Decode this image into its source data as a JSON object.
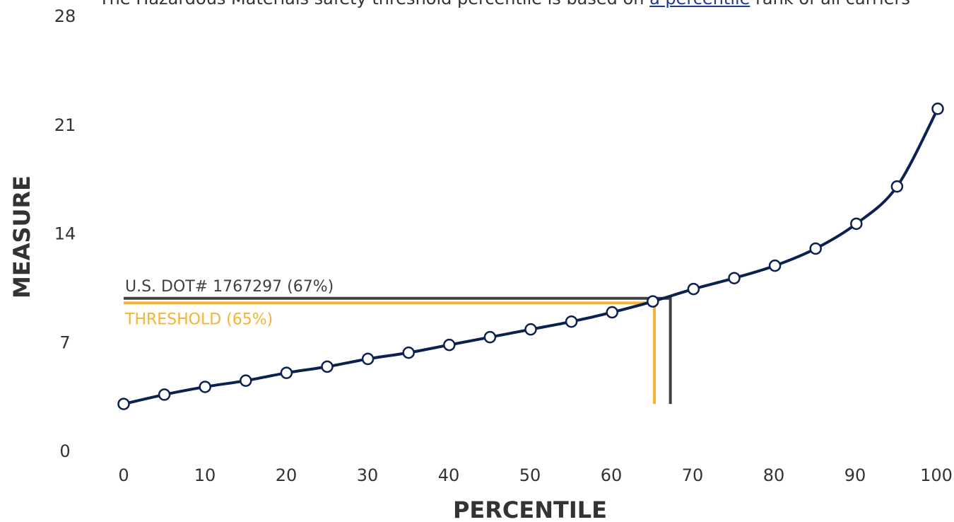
{
  "page": {
    "cut_text_prefix": "The Hazardous Materials safety threshold percentile is based on",
    "cut_text_link": "a percentile",
    "cut_text_suffix": "rank of all carriers"
  },
  "chart_data": {
    "type": "line",
    "title": "",
    "xlabel": "PERCENTILE",
    "ylabel": "MEASURE",
    "xlim": [
      0,
      102
    ],
    "ylim": [
      0,
      28
    ],
    "x_ticks": [
      "0",
      "10",
      "20",
      "30",
      "40",
      "50",
      "60",
      "70",
      "80",
      "90",
      "100"
    ],
    "y_ticks": [
      "0",
      "7",
      "14",
      "21",
      "28"
    ],
    "series": [
      {
        "x": [
          0,
          5.1,
          10.2,
          15.3,
          20.4,
          25.5,
          30.6,
          35.7,
          40.8,
          45.9,
          51,
          56.1,
          61.2,
          66.3,
          71.4,
          76.5,
          81.6,
          86.7,
          91.8,
          96.9,
          102
        ],
        "y": [
          3.0,
          3.6,
          4.1,
          4.5,
          5.0,
          5.4,
          5.9,
          6.3,
          6.8,
          7.3,
          7.8,
          8.3,
          8.9,
          9.6,
          10.4,
          11.1,
          11.9,
          13.0,
          14.6,
          17.0,
          22.0
        ]
      }
    ],
    "annotations": [
      {
        "label": "U.S. DOT# 1767297 (67%)",
        "percentile": 68.5,
        "measure": 9.8,
        "color": "#404040"
      },
      {
        "label": "THRESHOLD (65%)",
        "percentile": 66.5,
        "measure": 9.5,
        "color": "#f5b335"
      }
    ],
    "annotation_base": 3.0,
    "colors": {
      "line": "#0b2150",
      "marker_fill": "#ffffff",
      "text": "#333333"
    },
    "grid": false,
    "legend": "none"
  }
}
